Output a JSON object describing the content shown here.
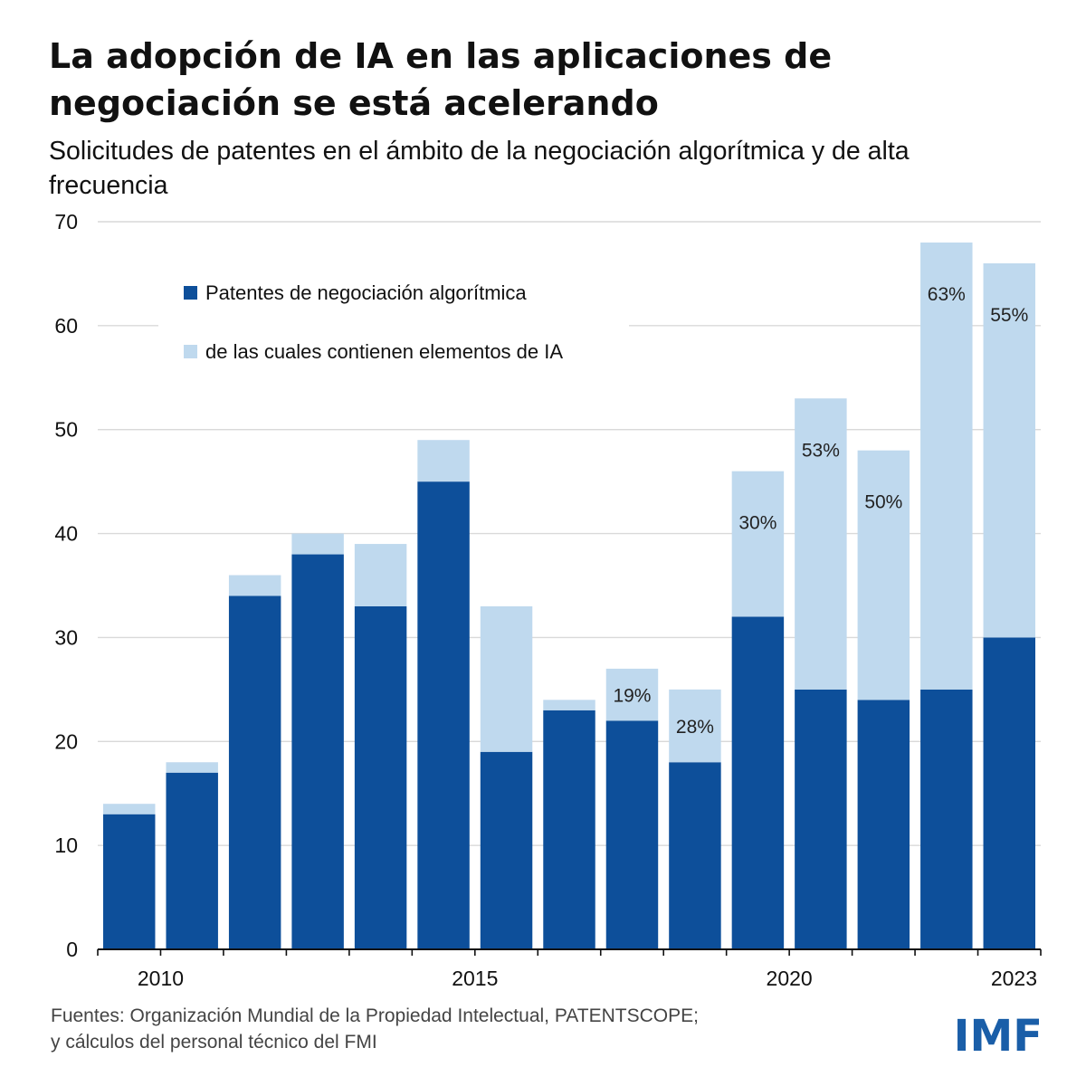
{
  "title": "La adopción de IA en las aplicaciones de negociación se está acelerando",
  "subtitle": "Solicitudes de patentes en el ámbito de la negociación algorítmica y de alta frecuencia",
  "source": {
    "line1": "Fuentes: Organización Mundial de la Propiedad Intelectual, PATENTSCOPE;",
    "line2": "y cálculos del personal técnico del FMI"
  },
  "logo_text": "IMF",
  "colors": {
    "dark": "#0d4f9a",
    "light": "#bfd9ee",
    "logo": "#1a5ea8"
  },
  "chart_data": {
    "type": "bar",
    "stacked": true,
    "categories": [
      "2009",
      "2010",
      "2011",
      "2012",
      "2013",
      "2014",
      "2015",
      "2016",
      "2017",
      "2018",
      "2019",
      "2020",
      "2021",
      "2022",
      "2023"
    ],
    "x_tick_labels": [
      {
        "after_index": 0,
        "label": "2010"
      },
      {
        "after_index": 5,
        "label": "2015"
      },
      {
        "after_index": 10,
        "label": "2020"
      },
      {
        "after_index": 14,
        "label": "2023"
      }
    ],
    "series": [
      {
        "name": "Patentes de negociación algorítmica",
        "color": "#0d4f9a",
        "values": [
          13,
          17,
          34,
          38,
          33,
          45,
          19,
          23,
          22,
          18,
          32,
          25,
          24,
          25,
          30
        ]
      },
      {
        "name": "de las cuales contienen elementos de IA",
        "color": "#bfd9ee",
        "values": [
          1,
          1,
          2,
          2,
          6,
          4,
          14,
          1,
          5,
          7,
          14,
          28,
          24,
          43,
          36
        ]
      }
    ],
    "annotations": [
      {
        "index": 8,
        "label": "19%"
      },
      {
        "index": 9,
        "label": "28%"
      },
      {
        "index": 10,
        "label": "30%"
      },
      {
        "index": 11,
        "label": "53%"
      },
      {
        "index": 12,
        "label": "50%"
      },
      {
        "index": 13,
        "label": "63%"
      },
      {
        "index": 14,
        "label": "55%"
      }
    ],
    "ylim": [
      0,
      70
    ],
    "yticks": [
      0,
      10,
      20,
      30,
      40,
      50,
      60,
      70
    ],
    "grid": true,
    "legend_position": "top-left"
  }
}
